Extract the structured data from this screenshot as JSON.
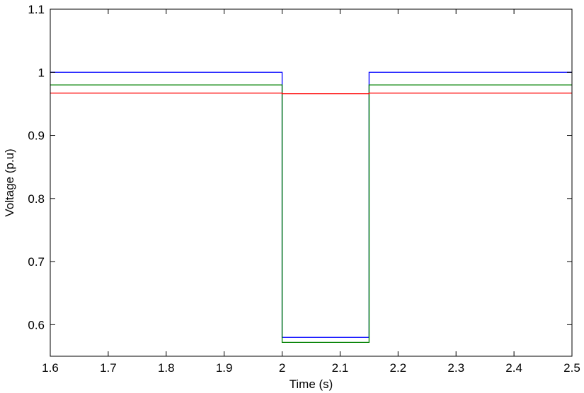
{
  "chart_data": {
    "type": "line",
    "xlabel": "Time (s)",
    "ylabel": "Voltage (p.u)",
    "xlim": [
      1.6,
      2.5
    ],
    "ylim": [
      0.55,
      1.1
    ],
    "xticks": [
      1.6,
      1.7,
      1.8,
      1.9,
      2.0,
      2.1,
      2.2,
      2.3,
      2.4,
      2.5
    ],
    "xtick_labels": [
      "1.6",
      "1.7",
      "1.8",
      "1.9",
      "2",
      "2.1",
      "2.2",
      "2.3",
      "2.4",
      "2.5"
    ],
    "yticks": [
      0.6,
      0.7,
      0.8,
      0.9,
      1.0,
      1.1
    ],
    "ytick_labels": [
      "0.6",
      "0.7",
      "0.8",
      "0.9",
      "1",
      "1.1"
    ],
    "grid": false,
    "series": [
      {
        "color": "#0000ff",
        "x": [
          1.6,
          2.0,
          2.0,
          2.15,
          2.15,
          2.5
        ],
        "y": [
          1.0,
          1.0,
          0.58,
          0.58,
          1.0,
          1.0
        ]
      },
      {
        "color": "#008000",
        "x": [
          1.6,
          2.0,
          2.0,
          2.15,
          2.15,
          2.5
        ],
        "y": [
          0.98,
          0.98,
          0.572,
          0.572,
          0.98,
          0.98
        ]
      },
      {
        "color": "#ff0000",
        "x": [
          1.6,
          2.0,
          2.0,
          2.15,
          2.15,
          2.5
        ],
        "y": [
          0.967,
          0.967,
          0.966,
          0.966,
          0.967,
          0.967
        ]
      }
    ]
  }
}
